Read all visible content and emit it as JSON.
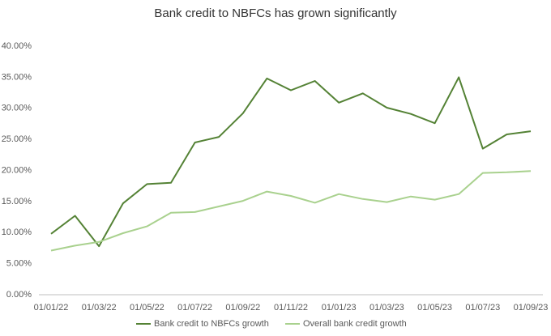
{
  "chart_data": {
    "type": "line",
    "title": "Bank credit to NBFCs has grown significantly",
    "categories": [
      "01/01/22",
      null,
      "01/03/22",
      null,
      "01/05/22",
      null,
      "01/07/22",
      null,
      "01/09/22",
      null,
      "01/11/22",
      null,
      "01/01/23",
      null,
      "01/03/23",
      null,
      "01/05/23",
      null,
      "01/07/23",
      null,
      "01/09/23"
    ],
    "series": [
      {
        "name": "Bank credit to NBFCs growth",
        "color": "#548235",
        "values": [
          9.8,
          12.7,
          7.8,
          14.7,
          17.8,
          18.0,
          24.5,
          25.4,
          29.2,
          34.8,
          32.9,
          34.4,
          30.9,
          32.4,
          30.1,
          29.1,
          27.6,
          35.0,
          23.5,
          25.8,
          26.3
        ]
      },
      {
        "name": "Overall bank credit growth",
        "color": "#a9d18e",
        "values": [
          7.1,
          7.9,
          8.5,
          9.9,
          11.0,
          13.2,
          13.3,
          14.2,
          15.1,
          16.6,
          15.9,
          14.8,
          16.2,
          15.4,
          14.9,
          15.8,
          15.3,
          16.2,
          19.6,
          19.7,
          19.9
        ]
      }
    ],
    "ylim": [
      0,
      40
    ],
    "yticks": [
      {
        "value": 0,
        "label": "0.00%"
      },
      {
        "value": 5,
        "label": "5.00%"
      },
      {
        "value": 10,
        "label": "10.00%"
      },
      {
        "value": 15,
        "label": "15.00%"
      },
      {
        "value": 20,
        "label": "20.00%"
      },
      {
        "value": 25,
        "label": "25.00%"
      },
      {
        "value": 30,
        "label": "30.00%"
      },
      {
        "value": 35,
        "label": "35.00%"
      },
      {
        "value": 40,
        "label": "40.00%"
      }
    ],
    "grid": false,
    "legend": "bottom"
  }
}
